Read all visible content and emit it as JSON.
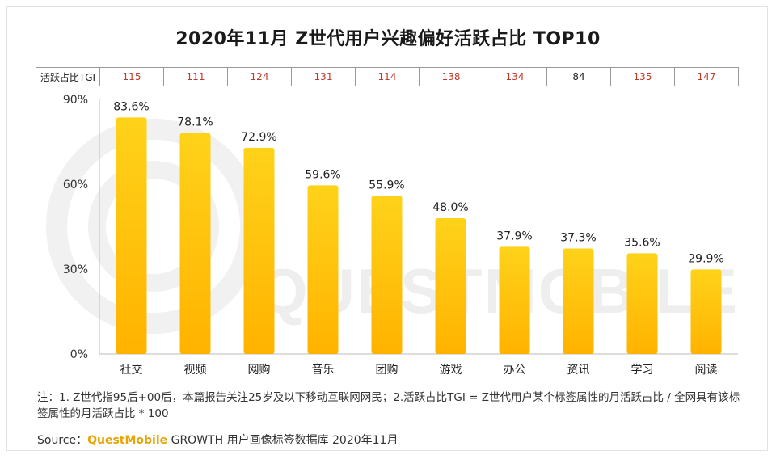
{
  "title": "2020年11月 Z世代用户兴趣偏好活跃占比 TOP10",
  "tgi": {
    "label": "活跃占比TGI",
    "values": [
      "115",
      "111",
      "124",
      "131",
      "114",
      "138",
      "134",
      "84",
      "135",
      "147"
    ]
  },
  "watermark": "QUESTMOBILE",
  "note": "注：1. Z世代指95后+00后，本篇报告关注25岁及以下移动互联网网民；2.活跃占比TGI = Z世代用户某个标签属性的月活跃占比 / 全网具有该标签属性的月活跃占比 * 100",
  "source": {
    "prefix": "Source：",
    "brand": "QuestMobile",
    "rest": " GROWTH 用户画像标签数据库 2020年11月"
  },
  "colors": {
    "bar_top": "#ffd21a",
    "bar_bottom": "#ffb300",
    "tgi_highlight": "#c0392b",
    "brand": "#e8a400"
  },
  "chart_data": {
    "type": "bar",
    "categories": [
      "社交",
      "视频",
      "网购",
      "音乐",
      "团购",
      "游戏",
      "办公",
      "资讯",
      "学习",
      "阅读"
    ],
    "values": [
      83.6,
      78.1,
      72.9,
      59.6,
      55.9,
      48.0,
      37.9,
      37.3,
      35.6,
      29.9
    ],
    "value_labels": [
      "83.6%",
      "78.1%",
      "72.9%",
      "59.6%",
      "55.9%",
      "48.0%",
      "37.9%",
      "37.3%",
      "35.6%",
      "29.9%"
    ],
    "yticks": [
      0,
      30,
      60,
      90
    ],
    "ytick_labels": [
      "0%",
      "30%",
      "60%",
      "90%"
    ],
    "ylim": [
      0,
      90
    ],
    "grid": false
  }
}
